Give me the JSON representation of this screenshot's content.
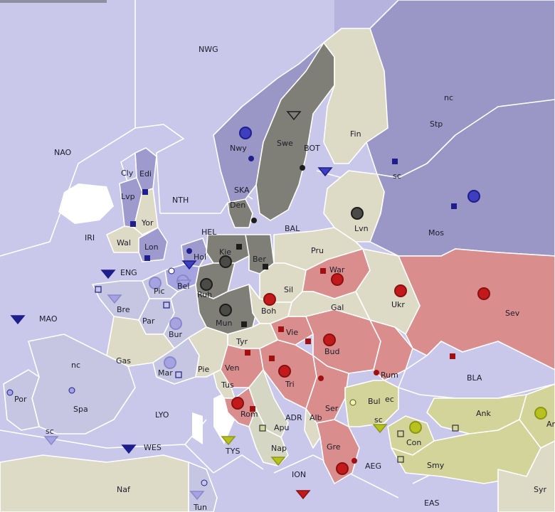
{
  "colors": {
    "sea": "#c9c7ea",
    "neutral": "#dddac6",
    "snow": "#ffffff",
    "russia": "#9a96c6",
    "england": "#9e9ace",
    "france": "#c6c6e2",
    "germany": "#7f7f78",
    "austria": "#d98d8d",
    "italy": "#d6d6c4",
    "turkey": "#d2d49a",
    "pip_russia": "#3d3fbe",
    "pip_england": "#1e1e8c",
    "pip_france": "#a6a4e0",
    "pip_germany": "#4a4a46",
    "pip_austria": "#c21a1a",
    "pip_italy": "#a01010",
    "pip_turkey": "#b7c21e",
    "center_neutral": "#cfd0c0"
  },
  "regions": {
    "nwg": "NWG",
    "nao": "NAO",
    "nth": "NTH",
    "ska": "SKA",
    "hel": "HEL",
    "bal": "BAL",
    "bot": "BOT",
    "iri": "IRI",
    "eng": "ENG",
    "mao": "MAO",
    "wes": "WES",
    "lyo": "LYO",
    "tys": "TYS",
    "adr": "ADR",
    "ion": "ION",
    "aeg": "AEG",
    "eas": "EAS",
    "bla": "BLA",
    "cly": "Cly",
    "edi": "Edi",
    "lvp": "Lvp",
    "yor": "Yor",
    "wal": "Wal",
    "lon": "Lon",
    "nwy": "Nwy",
    "swe": "Swe",
    "fin": "Fin",
    "stp": "Stp",
    "stp_nc": "nc",
    "stp_sc": "sc",
    "den": "Den",
    "hol": "Hol",
    "bel": "Bel",
    "kie": "Kie",
    "ber": "Ber",
    "ruh": "Ruh",
    "mun": "Mun",
    "pru": "Pru",
    "sil": "Sil",
    "lvn": "Lvn",
    "war": "War",
    "mos": "Mos",
    "ukr": "Ukr",
    "sev": "Sev",
    "gal": "Gal",
    "boh": "Boh",
    "tyr": "Tyr",
    "vie": "Vie",
    "bud": "Bud",
    "tri": "Tri",
    "ser": "Ser",
    "rum": "Rum",
    "bul": "Bul",
    "bul_ec": "ec",
    "bul_sc": "sc",
    "alb": "Alb",
    "gre": "Gre",
    "con": "Con",
    "ank": "Ank",
    "arm": "Arm",
    "smy": "Smy",
    "syr": "Syr",
    "pic": "Pic",
    "bre": "Bre",
    "par": "Par",
    "bur": "Bur",
    "gas": "Gas",
    "mar": "Mar",
    "pie": "Pie",
    "ven": "Ven",
    "tus": "Tus",
    "rom": "Rom",
    "apu": "Apu",
    "nap": "Nap",
    "spa": "Spa",
    "spa_nc": "nc",
    "spa_sc": "sc",
    "por": "Por",
    "naf": "Naf",
    "tun": "Tun"
  }
}
